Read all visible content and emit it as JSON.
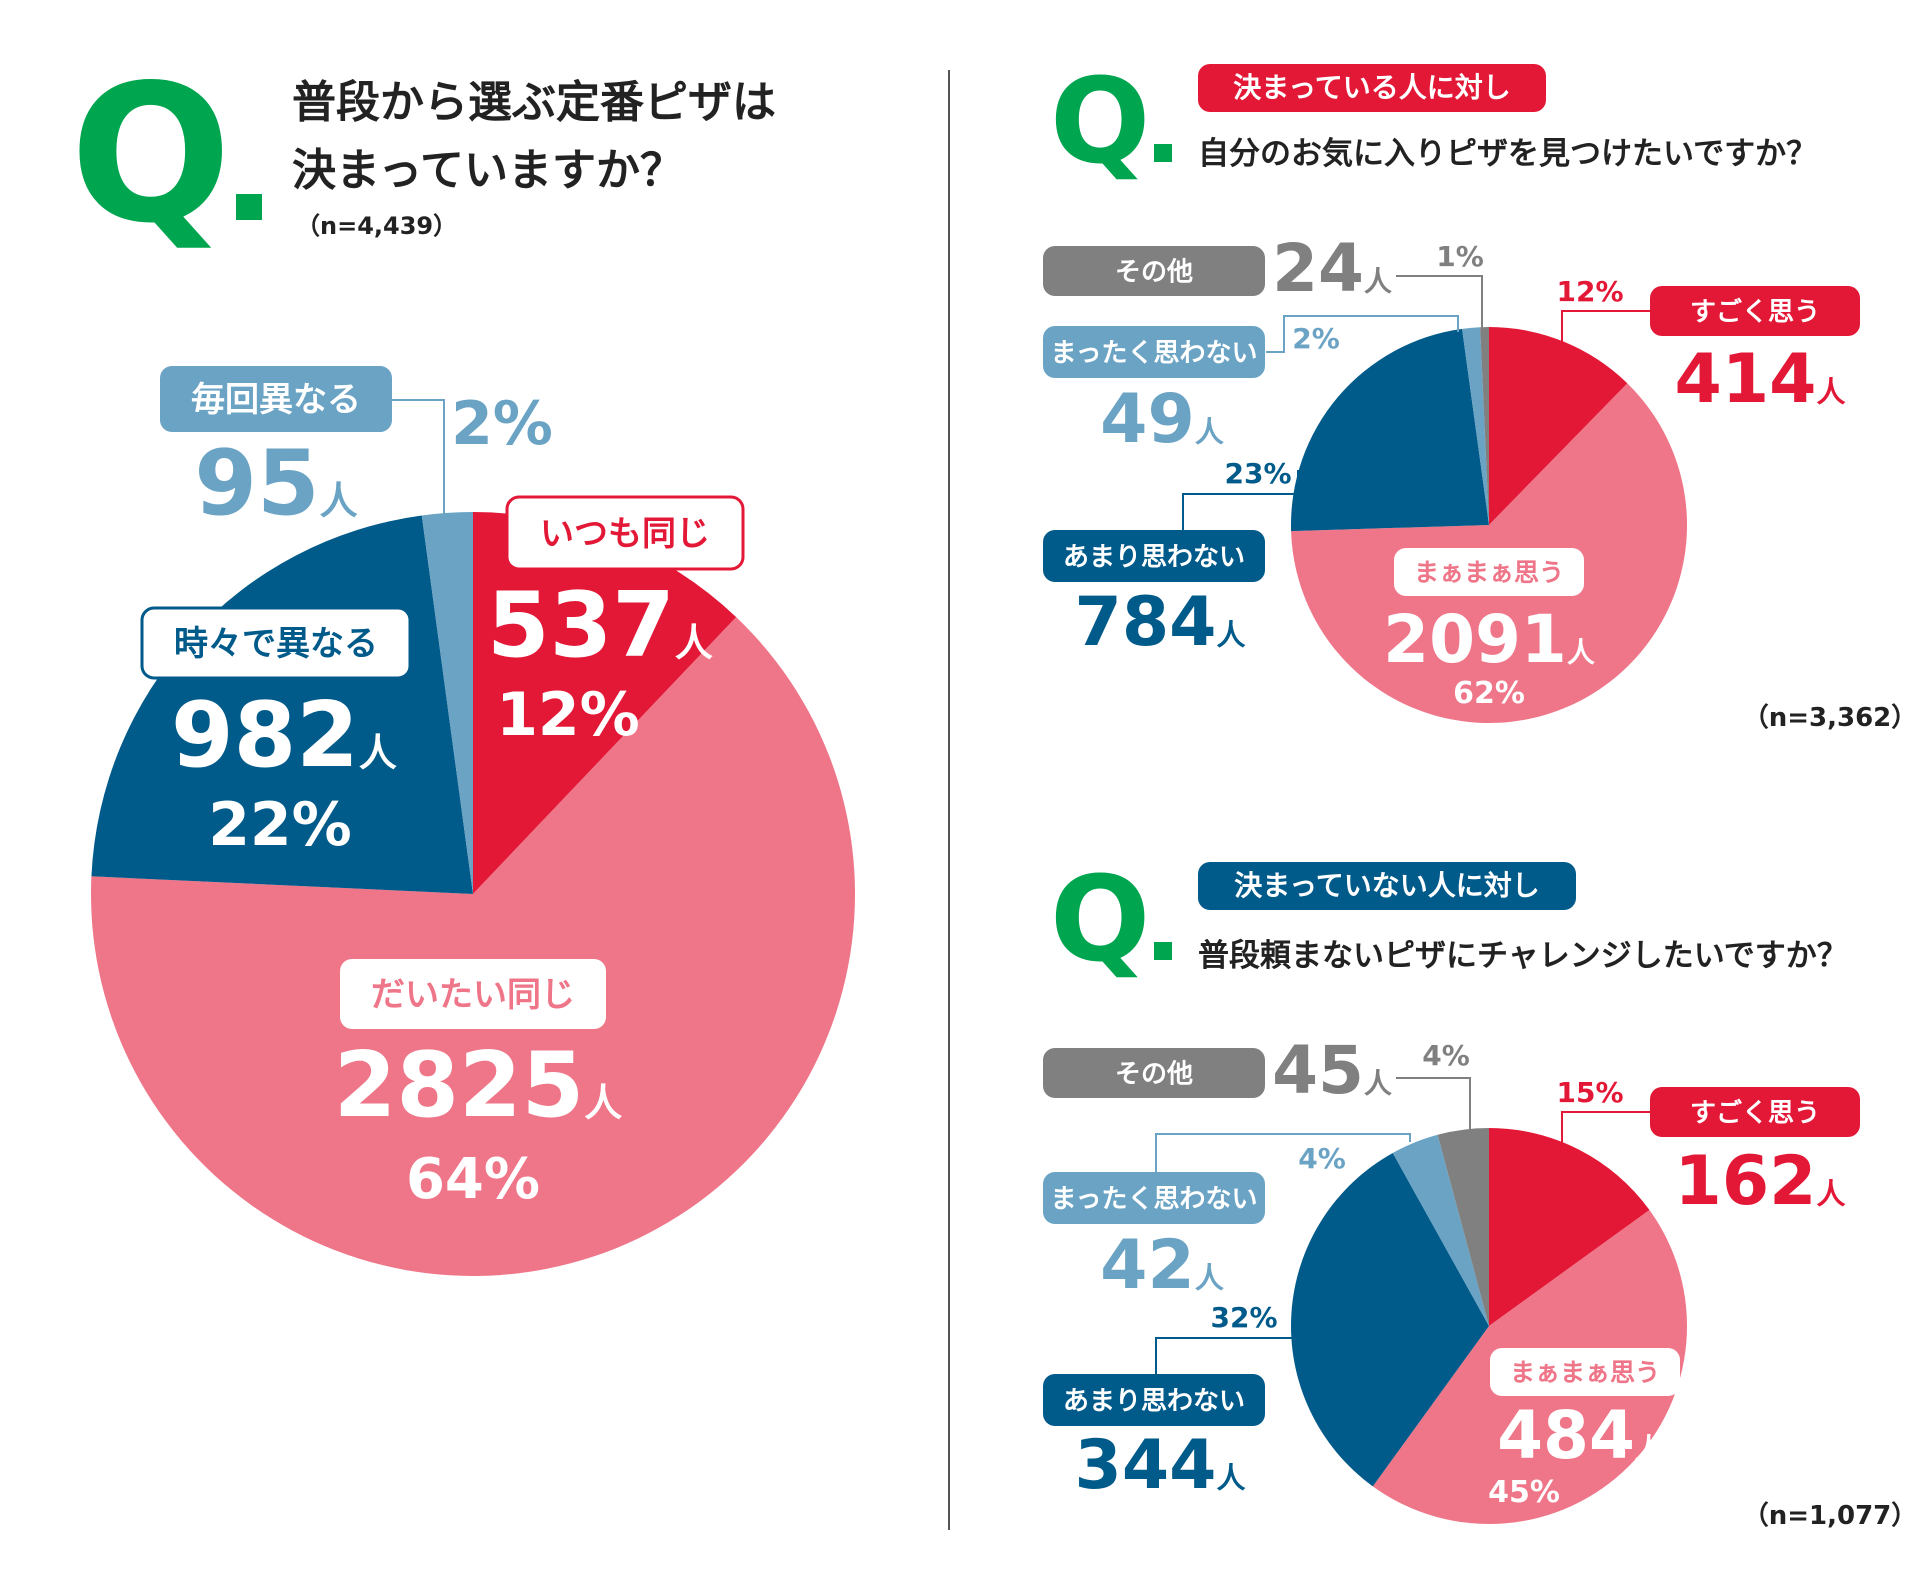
{
  "colors": {
    "green": "#00a54f",
    "red": "#e31837",
    "pink": "#ef7588",
    "navy": "#005a8a",
    "lightblue": "#6aa3c4",
    "gray": "#808080"
  },
  "person_unit": "人",
  "q1": {
    "q_letter": "Q",
    "question_line1": "普段から選ぶ定番ピザは",
    "question_line2": "決まっていますか？",
    "sample": "（n=4,439）"
  },
  "q2": {
    "q_letter": "Q",
    "tag": "決まっている人に対し",
    "question": "自分のお気に入りピザを見つけたいですか？",
    "sample": "（n=3,362）"
  },
  "q3": {
    "q_letter": "Q",
    "tag": "決まっていない人に対し",
    "question": "普段頼まないピザにチャレンジしたいですか？",
    "sample": "（n=1,077）"
  },
  "chart_data": [
    {
      "type": "pie",
      "title": "普段から選ぶ定番ピザは決まっていますか？",
      "sample": "（n=4,439）",
      "slices": [
        {
          "label": "いつも同じ",
          "count": "537",
          "percent": "12%",
          "value": 537,
          "pct": 12
        },
        {
          "label": "だいたい同じ",
          "count": "2825",
          "percent": "64%",
          "value": 2825,
          "pct": 64
        },
        {
          "label": "時々で異なる",
          "count": "982",
          "percent": "22%",
          "value": 982,
          "pct": 22
        },
        {
          "label": "毎回異なる",
          "count": "95",
          "percent": "2%",
          "value": 95,
          "pct": 2
        }
      ]
    },
    {
      "type": "pie",
      "title": "自分のお気に入りピザを見つけたいですか？",
      "sample": "（n=3,362）",
      "slices": [
        {
          "label": "すごく思う",
          "count": "414",
          "percent": "12%",
          "value": 414,
          "pct": 12
        },
        {
          "label": "まぁまぁ思う",
          "count": "2091",
          "percent": "62%",
          "value": 2091,
          "pct": 62
        },
        {
          "label": "あまり思わない",
          "count": "784",
          "percent": "23%",
          "value": 784,
          "pct": 23
        },
        {
          "label": "まったく思わない",
          "count": "49",
          "percent": "2%",
          "value": 49,
          "pct": 2
        },
        {
          "label": "その他",
          "count": "24",
          "percent": "1%",
          "value": 24,
          "pct": 1
        }
      ]
    },
    {
      "type": "pie",
      "title": "普段頼まないピザにチャレンジしたいですか？",
      "sample": "（n=1,077）",
      "slices": [
        {
          "label": "すごく思う",
          "count": "162",
          "percent": "15%",
          "value": 162,
          "pct": 15
        },
        {
          "label": "まぁまぁ思う",
          "count": "484",
          "percent": "45%",
          "value": 484,
          "pct": 45
        },
        {
          "label": "あまり思わない",
          "count": "344",
          "percent": "32%",
          "value": 344,
          "pct": 32
        },
        {
          "label": "まったく思わない",
          "count": "42",
          "percent": "4%",
          "value": 42,
          "pct": 4
        },
        {
          "label": "その他",
          "count": "45",
          "percent": "4%",
          "value": 45,
          "pct": 4
        }
      ]
    }
  ]
}
